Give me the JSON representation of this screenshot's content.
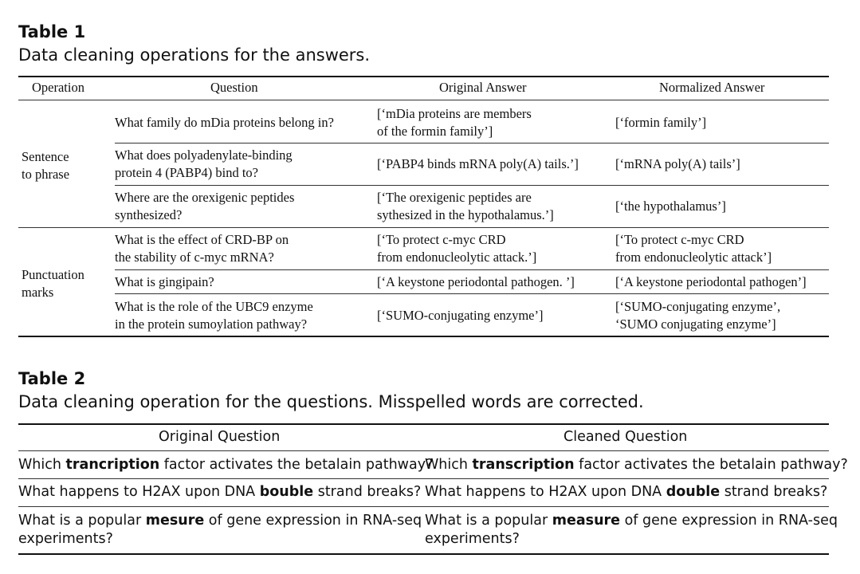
{
  "table1": {
    "label": "Table 1",
    "caption": "Data cleaning operations for the answers.",
    "headers": [
      "Operation",
      "Question",
      "Original Answer",
      "Normalized Answer"
    ],
    "groups": [
      {
        "operation": [
          "Sentence",
          "to phrase"
        ],
        "rows": [
          {
            "question": [
              "What family do mDia proteins belong in?"
            ],
            "original": [
              "[‘mDia proteins are members",
              "of the formin family’]"
            ],
            "normalized": [
              "[‘formin family’]"
            ]
          },
          {
            "question": [
              "What does polyadenylate-binding",
              "protein 4 (PABP4) bind to?"
            ],
            "original": [
              "[‘PABP4 binds mRNA poly(A) tails.’]"
            ],
            "normalized": [
              "[‘mRNA poly(A) tails’]"
            ]
          },
          {
            "question": [
              "Where are the orexigenic peptides",
              "synthesized?"
            ],
            "original": [
              "[‘The orexigenic peptides are",
              "sythesized in the hypothalamus.’]"
            ],
            "normalized": [
              "[‘the hypothalamus’]"
            ]
          }
        ]
      },
      {
        "operation": [
          "Punctuation",
          "marks"
        ],
        "rows": [
          {
            "question": [
              "What is the effect of CRD-BP on",
              "the stability of c-myc mRNA?"
            ],
            "original": [
              "[‘To protect c-myc CRD",
              "from endonucleolytic attack.’]"
            ],
            "normalized": [
              "[‘To protect c-myc CRD",
              "from endonucleolytic attack’]"
            ]
          },
          {
            "question": [
              "What is gingipain?"
            ],
            "original": [
              "[‘A keystone periodontal pathogen. ’]"
            ],
            "normalized": [
              "[‘A keystone periodontal pathogen’]"
            ]
          },
          {
            "question": [
              "What is the role of the UBC9 enzyme",
              "in the protein sumoylation pathway?"
            ],
            "original": [
              "[‘SUMO-conjugating enzyme’]"
            ],
            "normalized": [
              "[‘SUMO-conjugating enzyme’,",
              "‘SUMO conjugating enzyme’]"
            ]
          }
        ]
      }
    ]
  },
  "table2": {
    "label": "Table 2",
    "caption": "Data cleaning operation for the questions. Misspelled words are corrected.",
    "headers": [
      "Original Question",
      "Cleaned Question"
    ],
    "rows": [
      {
        "original": {
          "pre": "Which ",
          "bold": "trancription",
          "post": " factor activates the betalain pathway?"
        },
        "cleaned": {
          "pre": "Which ",
          "bold": "transcription",
          "post": " factor activates the betalain pathway?"
        }
      },
      {
        "original": {
          "pre": "What happens to H2AX upon DNA ",
          "bold": "bouble",
          "post": " strand breaks?"
        },
        "cleaned": {
          "pre": "What happens to H2AX upon DNA ",
          "bold": "double",
          "post": " strand breaks?"
        }
      },
      {
        "original": {
          "pre": "What is a popular ",
          "bold": "mesure",
          "post": " of gene expression in RNA-seq",
          "line2": "experiments?"
        },
        "cleaned": {
          "pre": "What is a popular ",
          "bold": "measure",
          "post": " of gene expression in RNA-seq",
          "line2": "experiments?"
        }
      }
    ]
  }
}
